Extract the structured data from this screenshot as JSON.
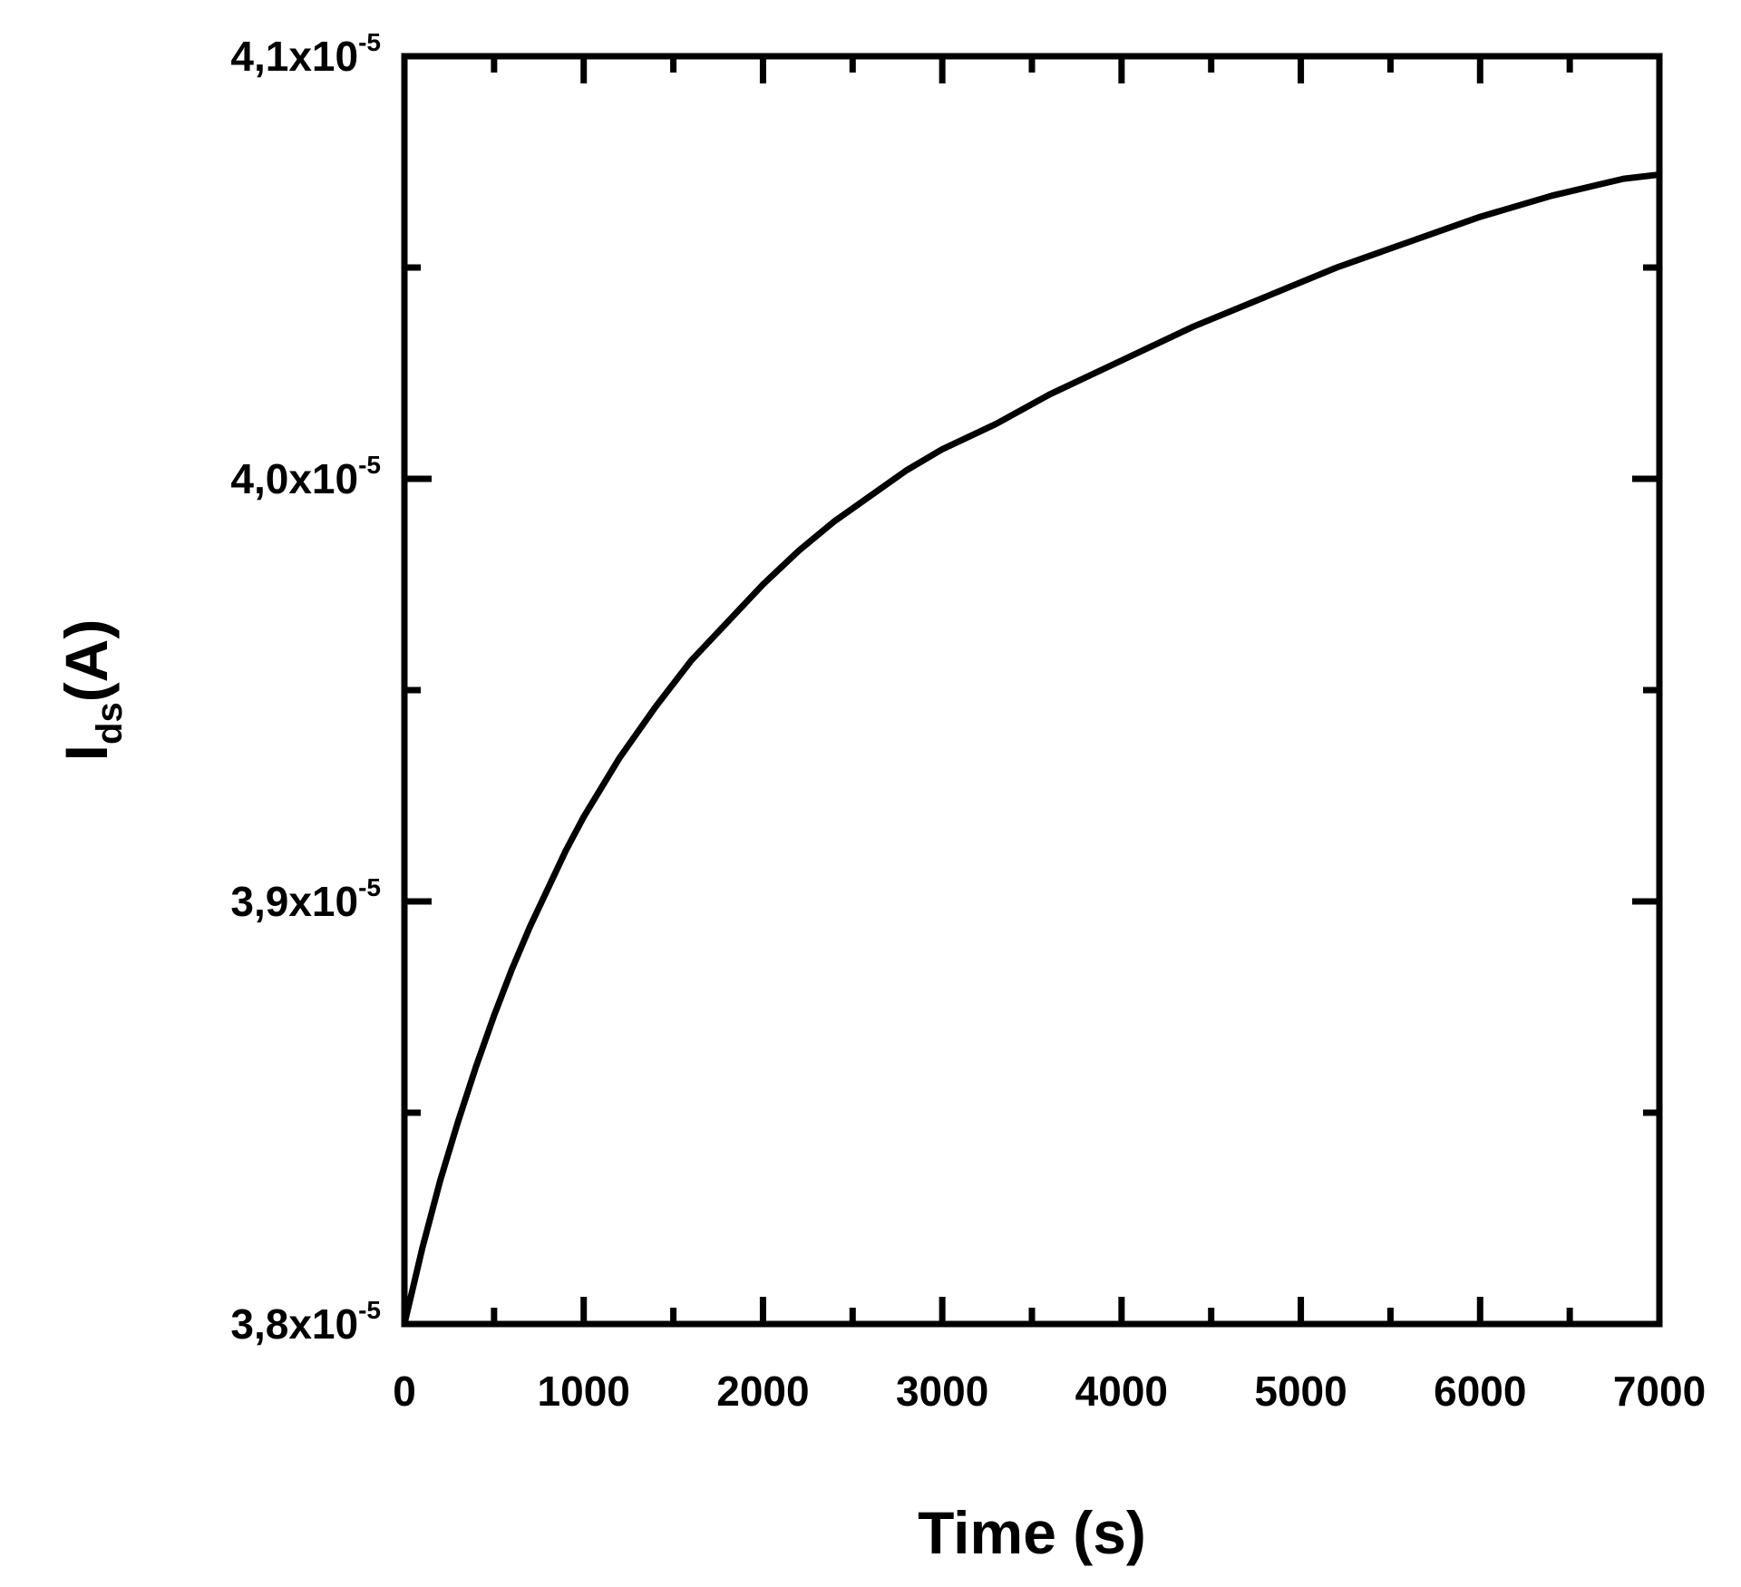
{
  "chart_data": {
    "type": "line",
    "xlabel": "Time (s)",
    "ylabel": {
      "base": "I",
      "subscript": "ds",
      "unit": "(A)"
    },
    "xlim": [
      0,
      7000
    ],
    "ylim": [
      3.8e-05,
      4.1e-05
    ],
    "x_ticks": [
      0,
      1000,
      2000,
      3000,
      4000,
      5000,
      6000,
      7000
    ],
    "x_tick_labels": [
      "0",
      "1000",
      "2000",
      "3000",
      "4000",
      "5000",
      "6000",
      "7000"
    ],
    "x_minor_step": 500,
    "y_ticks": [
      3.8e-05,
      3.9e-05,
      4e-05,
      4.1e-05
    ],
    "y_tick_labels": [
      {
        "mantissa": "3,8x10",
        "exponent": "-5"
      },
      {
        "mantissa": "3,9x10",
        "exponent": "-5"
      },
      {
        "mantissa": "4,0x10",
        "exponent": "-5"
      },
      {
        "mantissa": "4,1x10",
        "exponent": "-5"
      }
    ],
    "y_minor_step": 5e-07,
    "grid": false,
    "series": [
      {
        "color": "#000000",
        "x": [
          0,
          100,
          200,
          300,
          400,
          500,
          600,
          700,
          800,
          900,
          1000,
          1200,
          1400,
          1600,
          1800,
          2000,
          2200,
          2400,
          2600,
          2800,
          3000,
          3300,
          3600,
          4000,
          4400,
          4800,
          5200,
          5600,
          6000,
          6400,
          6800,
          7000
        ],
        "y": [
          3.8e-05,
          3.818e-05,
          3.834e-05,
          3.848e-05,
          3.861e-05,
          3.873e-05,
          3.884e-05,
          3.894e-05,
          3.903e-05,
          3.912e-05,
          3.92e-05,
          3.934e-05,
          3.946e-05,
          3.957e-05,
          3.966e-05,
          3.975e-05,
          3.983e-05,
          3.99e-05,
          3.996e-05,
          4.002e-05,
          4.007e-05,
          4.013e-05,
          4.02e-05,
          4.028e-05,
          4.036e-05,
          4.043e-05,
          4.05e-05,
          4.056e-05,
          4.062e-05,
          4.067e-05,
          4.071e-05,
          4.072e-05
        ]
      }
    ]
  }
}
